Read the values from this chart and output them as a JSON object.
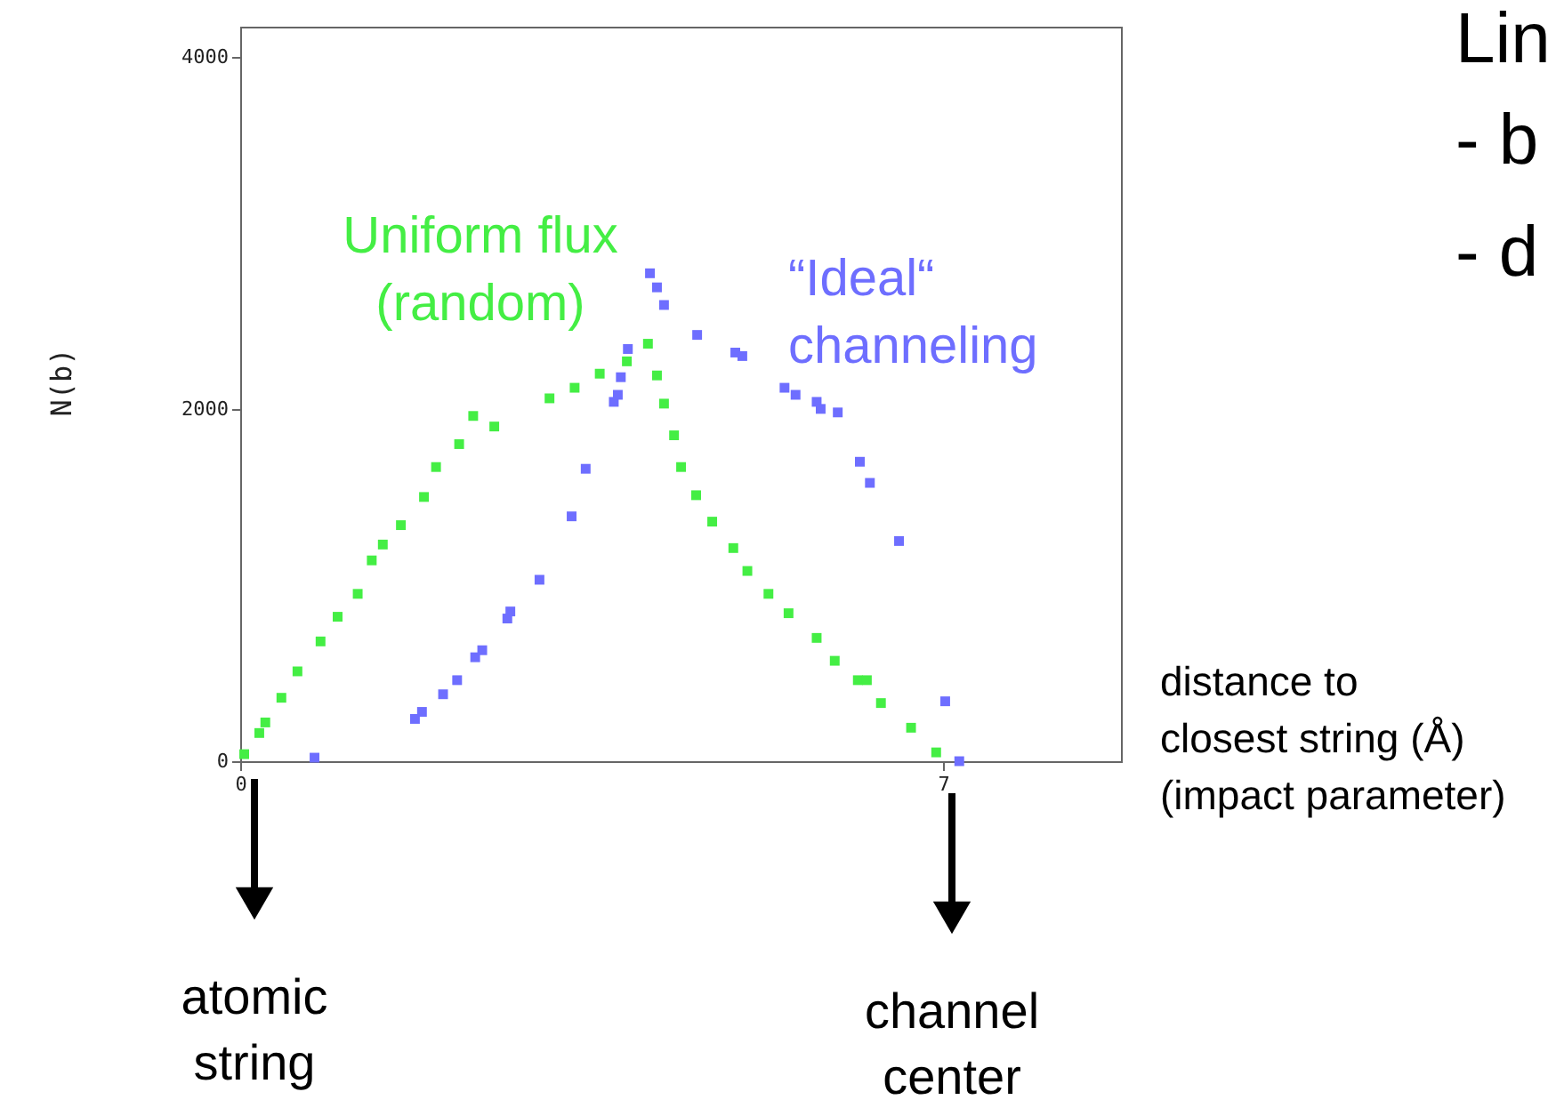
{
  "chart_data": {
    "type": "scatter",
    "ylabel": "N(b)",
    "xlabel": "distance to\nclosest string (Å)\n(impact parameter)",
    "xlim": [
      0,
      8.77
    ],
    "ylim": [
      0,
      4170
    ],
    "xticks": [
      0,
      7
    ],
    "yticks": [
      0,
      2000,
      4000
    ],
    "grid": false,
    "marker": "square",
    "series": [
      {
        "name": "Uniform flux\n(random)",
        "color": "#44ee44",
        "x": [
          0.04,
          0.19,
          0.25,
          0.41,
          0.57,
          0.8,
          0.97,
          1.17,
          1.31,
          1.42,
          1.6,
          1.83,
          1.95,
          2.18,
          2.32,
          2.53,
          3.08,
          3.33,
          3.58,
          3.85,
          4.06,
          4.15,
          4.22,
          4.32,
          4.39,
          4.54,
          4.7,
          4.91,
          5.05,
          5.26,
          5.46,
          5.74,
          5.92,
          6.15,
          6.24,
          6.38,
          6.68,
          6.93
        ],
        "values": [
          40,
          160,
          220,
          360,
          510,
          680,
          820,
          950,
          1140,
          1230,
          1340,
          1500,
          1670,
          1800,
          1960,
          1900,
          2060,
          2120,
          2200,
          2270,
          2370,
          2190,
          2030,
          1850,
          1670,
          1510,
          1360,
          1210,
          1080,
          950,
          840,
          700,
          570,
          460,
          460,
          330,
          190,
          50
        ]
      },
      {
        "name": "“Ideal“\nchanneling",
        "color": "#6e6eff",
        "x": [
          0.74,
          1.74,
          1.81,
          2.02,
          2.16,
          2.34,
          2.41,
          2.66,
          2.69,
          2.98,
          3.3,
          3.44,
          3.72,
          3.76,
          3.79,
          3.86,
          4.08,
          4.15,
          4.22,
          4.55,
          4.93,
          5.0,
          5.42,
          5.53,
          5.74,
          5.78,
          5.95,
          6.17,
          6.27,
          6.56,
          7.02,
          7.16
        ],
        "values": [
          20,
          240,
          280,
          380,
          460,
          590,
          630,
          810,
          850,
          1030,
          1390,
          1660,
          2040,
          2080,
          2180,
          2340,
          2770,
          2690,
          2590,
          2420,
          2320,
          2300,
          2120,
          2080,
          2040,
          2000,
          1980,
          1700,
          1580,
          1250,
          340,
          0
        ]
      }
    ],
    "annotations": [
      "atomic\nstring",
      "channel\ncenter",
      "Lin",
      "- b",
      "- d"
    ]
  }
}
